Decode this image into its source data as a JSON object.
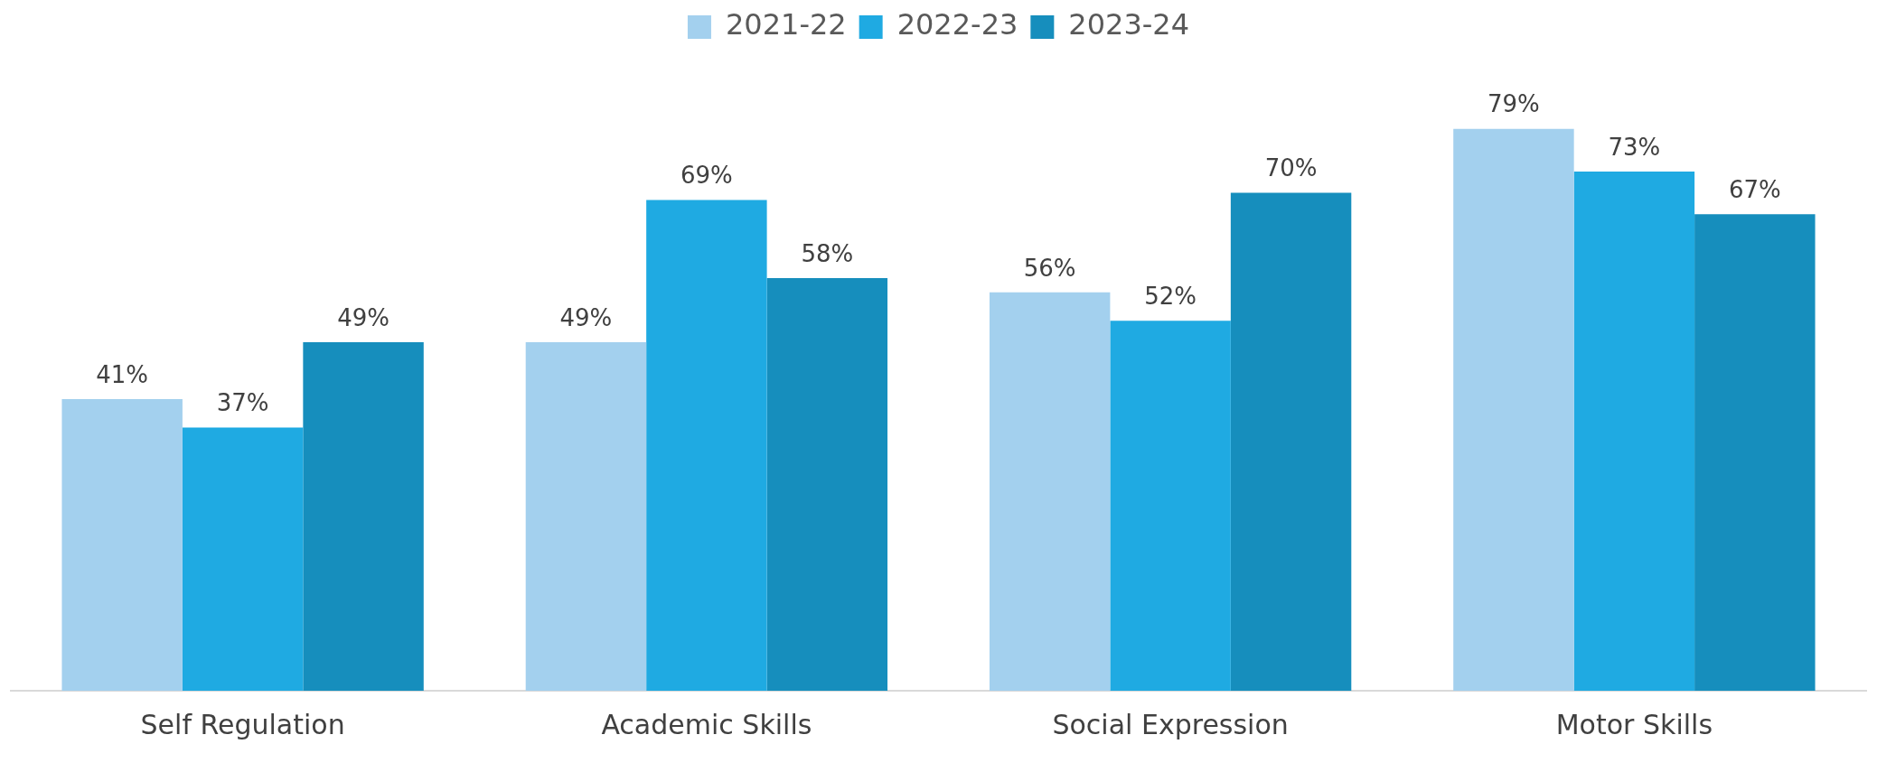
{
  "chart_data": {
    "type": "bar",
    "categories": [
      "Self Regulation",
      "Academic Skills",
      "Social Expression",
      "Motor Skills"
    ],
    "series": [
      {
        "name": "2021-22",
        "color": "#a3d0ee",
        "values": [
          41,
          49,
          56,
          79
        ],
        "value_labels": [
          "41%",
          "49%",
          "56%",
          "79%"
        ]
      },
      {
        "name": "2022-23",
        "color": "#1faae2",
        "values": [
          37,
          69,
          52,
          73
        ],
        "value_labels": [
          "37%",
          "69%",
          "52%",
          "73%"
        ]
      },
      {
        "name": "2023-24",
        "color": "#168ebd",
        "values": [
          49,
          58,
          70,
          67
        ],
        "value_labels": [
          "49%",
          "58%",
          "70%",
          "67%"
        ]
      }
    ],
    "tick_labels": "x",
    "grid": false,
    "legend": "top"
  }
}
